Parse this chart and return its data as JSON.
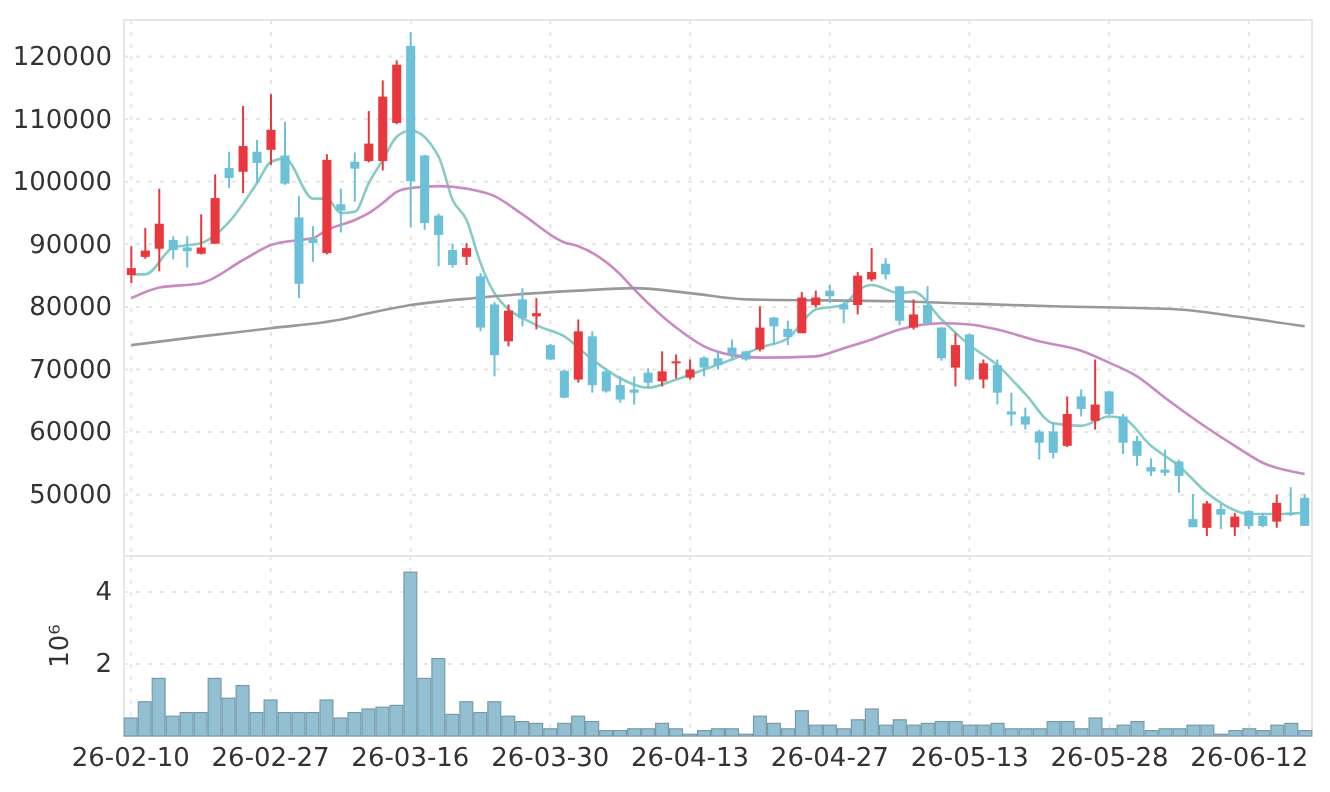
{
  "chart_data": [
    {
      "type": "candlestick",
      "categories": [
        null,
        null,
        null,
        null,
        null,
        null,
        null,
        null,
        null,
        null,
        null,
        null,
        null,
        null,
        null,
        null,
        null,
        null,
        null,
        null,
        null,
        null,
        null,
        null,
        null,
        null,
        null,
        null,
        null,
        null,
        null,
        null,
        null,
        null,
        null,
        null,
        null,
        null,
        null,
        null,
        null,
        null,
        null,
        null,
        null,
        null,
        null,
        null,
        null,
        null,
        null,
        null,
        null,
        null,
        null,
        null,
        null,
        null,
        null,
        null,
        null,
        null,
        null,
        null,
        null,
        null,
        null,
        null,
        null,
        null,
        null,
        null,
        null,
        null,
        null,
        null,
        null,
        null,
        null,
        null,
        null,
        null,
        null,
        null,
        null
      ],
      "ohlc": [
        [
          85100,
          89700,
          83800,
          86200
        ],
        [
          88000,
          92600,
          87700,
          89000
        ],
        [
          89300,
          98900,
          85700,
          93300
        ],
        [
          90700,
          91300,
          87600,
          89100
        ],
        [
          89500,
          91300,
          86300,
          88900
        ],
        [
          88500,
          94800,
          88400,
          89500
        ],
        [
          90100,
          101200,
          90100,
          97400
        ],
        [
          102200,
          104800,
          99000,
          100600
        ],
        [
          101600,
          112100,
          98200,
          105700
        ],
        [
          104800,
          106700,
          99800,
          103000
        ],
        [
          105100,
          114000,
          102700,
          108300
        ],
        [
          104200,
          109600,
          99500,
          99700
        ],
        [
          94300,
          97700,
          81400,
          83700
        ],
        [
          90900,
          92900,
          87200,
          90200
        ],
        [
          88600,
          104400,
          88400,
          103500
        ],
        [
          96400,
          98900,
          91900,
          95400
        ],
        [
          103200,
          104700,
          96800,
          102100
        ],
        [
          103300,
          111300,
          103100,
          106100
        ],
        [
          103300,
          116200,
          101800,
          113600
        ],
        [
          109400,
          119400,
          109200,
          118700
        ],
        [
          121700,
          123900,
          92700,
          100100
        ],
        [
          104200,
          104300,
          92300,
          93400
        ],
        [
          94600,
          94900,
          86500,
          91500
        ],
        [
          89100,
          90100,
          86300,
          86700
        ],
        [
          88000,
          90200,
          86700,
          89400
        ],
        [
          84900,
          85400,
          76100,
          76700
        ],
        [
          80400,
          80800,
          68900,
          72300
        ],
        [
          74500,
          80400,
          73700,
          79400
        ],
        [
          81200,
          83000,
          76900,
          78200
        ],
        [
          78500,
          81400,
          76400,
          79000
        ],
        [
          73900,
          74100,
          71500,
          71600
        ],
        [
          69800,
          70000,
          65400,
          65500
        ],
        [
          68400,
          78000,
          67900,
          76100
        ],
        [
          75300,
          76100,
          66300,
          67500
        ],
        [
          69700,
          69800,
          66300,
          66500
        ],
        [
          67500,
          68900,
          64700,
          65200
        ],
        [
          66800,
          68900,
          64400,
          66300
        ],
        [
          69500,
          70200,
          67100,
          67900
        ],
        [
          68100,
          72900,
          67300,
          69700
        ],
        [
          71000,
          72400,
          68600,
          71300
        ],
        [
          68700,
          71600,
          68400,
          70000
        ],
        [
          71900,
          72100,
          68900,
          70300
        ],
        [
          71800,
          73000,
          70000,
          70700
        ],
        [
          73500,
          74800,
          71600,
          72400
        ],
        [
          72900,
          73000,
          71400,
          71600
        ],
        [
          73200,
          80100,
          72900,
          76700
        ],
        [
          78300,
          78400,
          73900,
          76900
        ],
        [
          76500,
          77800,
          73900,
          75200
        ],
        [
          75800,
          82400,
          75800,
          81500
        ],
        [
          80300,
          82600,
          79900,
          81500
        ],
        [
          82600,
          83500,
          80600,
          81700
        ],
        [
          80400,
          81200,
          77400,
          79600
        ],
        [
          80300,
          85600,
          78800,
          85000
        ],
        [
          84400,
          89400,
          84100,
          85600
        ],
        [
          86900,
          87800,
          84400,
          85200
        ],
        [
          83300,
          83300,
          77100,
          77800
        ],
        [
          76700,
          81200,
          76400,
          78800
        ],
        [
          80300,
          83300,
          77100,
          77400
        ],
        [
          76700,
          76800,
          71400,
          71800
        ],
        [
          70300,
          75800,
          67300,
          73900
        ],
        [
          75600,
          75700,
          68300,
          68400
        ],
        [
          68400,
          71600,
          67000,
          71000
        ],
        [
          70700,
          71600,
          64400,
          66300
        ],
        [
          63300,
          66300,
          61000,
          62800
        ],
        [
          62500,
          63900,
          60400,
          61200
        ],
        [
          60100,
          60400,
          55600,
          58300
        ],
        [
          60100,
          61500,
          55800,
          56700
        ],
        [
          57800,
          65700,
          57600,
          62900
        ],
        [
          65700,
          66800,
          62500,
          63700
        ],
        [
          61800,
          71600,
          60400,
          64400
        ],
        [
          66500,
          66600,
          62700,
          62900
        ],
        [
          62500,
          62900,
          56500,
          58300
        ],
        [
          58600,
          59400,
          54600,
          56200
        ],
        [
          54400,
          55800,
          53000,
          53700
        ],
        [
          54000,
          57200,
          53000,
          53500
        ],
        [
          55300,
          55600,
          50300,
          53000
        ],
        [
          46100,
          50100,
          44800,
          44800
        ],
        [
          44700,
          49000,
          43400,
          48600
        ],
        [
          47700,
          48500,
          44500,
          46800
        ],
        [
          44800,
          47100,
          43400,
          46500
        ],
        [
          47400,
          47500,
          44500,
          45000
        ],
        [
          46600,
          47100,
          44800,
          45000
        ],
        [
          45700,
          50000,
          44700,
          48700
        ],
        [
          47100,
          51200,
          46600,
          46800
        ],
        [
          49500,
          50100,
          45000,
          45000
        ]
      ],
      "colors": [
        "#e8383d",
        "#e8383d",
        "#e8383d",
        "#6cc0d8",
        "#6cc0d8",
        "#e8383d",
        "#e8383d",
        "#6cc0d8",
        "#e8383d",
        "#6cc0d8",
        "#e8383d",
        "#6cc0d8",
        "#6cc0d8",
        "#6cc0d8",
        "#e8383d",
        "#6cc0d8",
        "#6cc0d8",
        "#e8383d",
        "#e8383d",
        "#e8383d",
        "#6cc0d8",
        "#6cc0d8",
        "#6cc0d8",
        "#6cc0d8",
        "#e8383d",
        "#6cc0d8",
        "#6cc0d8",
        "#e8383d",
        "#6cc0d8",
        "#e8383d",
        "#6cc0d8",
        "#6cc0d8",
        "#e8383d",
        "#6cc0d8",
        "#6cc0d8",
        "#6cc0d8",
        "#6cc0d8",
        "#6cc0d8",
        "#e8383d",
        "#e8383d",
        "#e8383d",
        "#6cc0d8",
        "#6cc0d8",
        "#6cc0d8",
        "#6cc0d8",
        "#e8383d",
        "#6cc0d8",
        "#6cc0d8",
        "#e8383d",
        "#e8383d",
        "#6cc0d8",
        "#6cc0d8",
        "#e8383d",
        "#e8383d",
        "#6cc0d8",
        "#6cc0d8",
        "#e8383d",
        "#6cc0d8",
        "#6cc0d8",
        "#e8383d",
        "#6cc0d8",
        "#e8383d",
        "#6cc0d8",
        "#6cc0d8",
        "#6cc0d8",
        "#6cc0d8",
        "#6cc0d8",
        "#e8383d",
        "#6cc0d8",
        "#e8383d",
        "#6cc0d8",
        "#6cc0d8",
        "#6cc0d8",
        "#6cc0d8",
        "#6cc0d8",
        "#6cc0d8",
        "#6cc0d8",
        "#e8383d",
        "#6cc0d8",
        "#e8383d",
        "#6cc0d8",
        "#6cc0d8",
        "#e8383d",
        "#6cc0d8",
        "#6cc0d8"
      ],
      "series": [
        {
          "type": "line",
          "color": "#86cbc4",
          "values": [
            85200,
            85200,
            null,
            89500,
            null,
            90200,
            null,
            93600,
            null,
            99800,
            103200,
            103700,
            null,
            97300,
            97300,
            95000,
            95200,
            99800,
            103500,
            107200,
            108200,
            null,
            104000,
            97100,
            93900,
            87000,
            82200,
            null,
            null,
            77100,
            null,
            75300,
            null,
            71600,
            null,
            68600,
            null,
            67100,
            null,
            68400,
            null,
            70000,
            null,
            71600,
            null,
            73500,
            null,
            75000,
            null,
            79600,
            null,
            80300,
            82600,
            83500,
            null,
            82200,
            82400,
            null,
            78000,
            null,
            73900,
            null,
            70700,
            null,
            66100,
            null,
            61400,
            null,
            61000,
            null,
            62500,
            62200,
            null,
            57800,
            null,
            54600,
            null,
            50300,
            null,
            47500,
            46900,
            null,
            46900,
            null,
            47100
          ]
        },
        {
          "type": "line",
          "color": "#c98ac2",
          "values": [
            81400,
            null,
            83100,
            null,
            null,
            83800,
            null,
            null,
            87500,
            null,
            89900,
            null,
            90700,
            91000,
            92300,
            null,
            93900,
            95000,
            96600,
            98400,
            99000,
            null,
            99300,
            null,
            98900,
            null,
            97700,
            null,
            94800,
            null,
            null,
            90300,
            89700,
            null,
            null,
            85200,
            82800,
            null,
            null,
            76700,
            null,
            73700,
            null,
            72300,
            null,
            71900,
            null,
            null,
            null,
            72100,
            null,
            73400,
            null,
            74800,
            null,
            76400,
            null,
            null,
            77400,
            null,
            77200,
            null,
            76400,
            null,
            null,
            74500,
            null,
            null,
            73000,
            null,
            71100,
            null,
            68900,
            null,
            65500,
            null,
            null,
            60700,
            null,
            57800,
            null,
            55100,
            null,
            null,
            53300
          ]
        },
        {
          "type": "line",
          "color": "#999999",
          "values": [
            73900,
            null,
            null,
            null,
            null,
            75300,
            null,
            null,
            null,
            null,
            76600,
            null,
            null,
            null,
            null,
            78000,
            null,
            79000,
            null,
            null,
            80300,
            null,
            null,
            null,
            null,
            81500,
            81700,
            null,
            null,
            null,
            null,
            null,
            82600,
            null,
            null,
            null,
            83000,
            null,
            null,
            null,
            82200,
            null,
            null,
            null,
            81200,
            null,
            null,
            null,
            null,
            null,
            null,
            null,
            null,
            null,
            null,
            80900,
            null,
            null,
            null,
            80600,
            null,
            null,
            null,
            null,
            null,
            null,
            80100,
            null,
            null,
            null,
            null,
            null,
            null,
            null,
            null,
            79600,
            null,
            null,
            null,
            78500,
            null,
            null,
            null,
            null,
            76900
          ]
        }
      ],
      "ylim": [
        40200,
        125850
      ],
      "yticks": [
        50000,
        60000,
        70000,
        80000,
        90000,
        100000,
        110000,
        120000
      ],
      "grid": true,
      "tick_labels": "y"
    },
    {
      "type": "bar",
      "categories": [
        "26-02-10",
        null,
        null,
        null,
        null,
        null,
        null,
        null,
        null,
        null,
        "26-02-27",
        null,
        null,
        null,
        null,
        null,
        null,
        null,
        null,
        null,
        "26-03-16",
        null,
        null,
        null,
        null,
        null,
        null,
        null,
        null,
        null,
        "26-03-30",
        null,
        null,
        null,
        null,
        null,
        null,
        null,
        null,
        null,
        "26-04-13",
        null,
        null,
        null,
        null,
        null,
        null,
        null,
        null,
        null,
        "26-04-27",
        null,
        null,
        null,
        null,
        null,
        null,
        null,
        null,
        null,
        "26-05-13",
        null,
        null,
        null,
        null,
        null,
        null,
        null,
        null,
        null,
        "26-05-28",
        null,
        null,
        null,
        null,
        null,
        null,
        null,
        null,
        null,
        "26-06-12",
        null,
        null,
        null,
        null
      ],
      "values": [
        0.5,
        0.95,
        1.6,
        0.55,
        0.65,
        0.65,
        1.6,
        1.05,
        1.4,
        0.65,
        1.0,
        0.65,
        0.65,
        0.65,
        1.0,
        0.5,
        0.65,
        0.75,
        0.8,
        0.85,
        4.55,
        1.6,
        2.15,
        0.6,
        0.95,
        0.65,
        0.95,
        0.55,
        0.4,
        0.35,
        0.2,
        0.35,
        0.55,
        0.4,
        0.15,
        0.15,
        0.2,
        0.2,
        0.35,
        0.2,
        0.05,
        0.15,
        0.2,
        0.2,
        0.05,
        0.55,
        0.35,
        0.2,
        0.7,
        0.3,
        0.3,
        0.2,
        0.45,
        0.75,
        0.3,
        0.45,
        0.3,
        0.35,
        0.4,
        0.4,
        0.3,
        0.3,
        0.35,
        0.2,
        0.2,
        0.2,
        0.4,
        0.4,
        0.2,
        0.5,
        0.2,
        0.3,
        0.4,
        0.15,
        0.2,
        0.2,
        0.3,
        0.3,
        0.05,
        0.15,
        0.2,
        0.15,
        0.3,
        0.35,
        0.15
      ],
      "color": "#93bfd3",
      "ylabel": "10⁶",
      "ylim": [
        0,
        5
      ],
      "yticks": [
        2,
        4
      ],
      "grid": true
    }
  ]
}
